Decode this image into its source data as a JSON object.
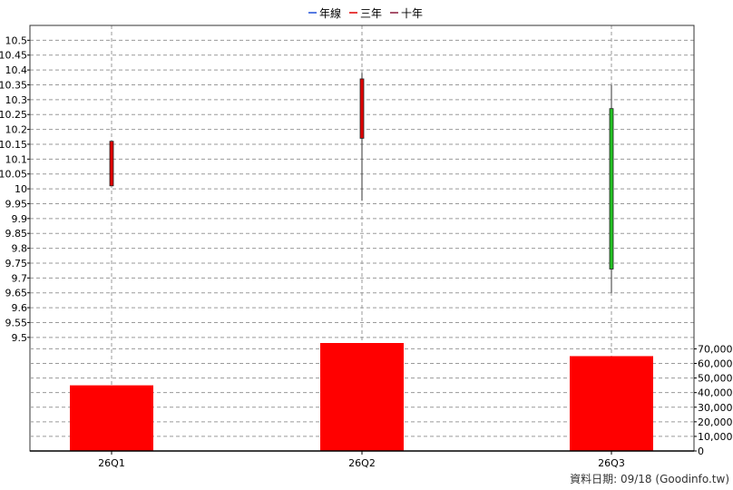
{
  "chart_data": [
    {
      "type": "candlestick",
      "categories": [
        "26Q1",
        "26Q2",
        "26Q3"
      ],
      "candles": [
        {
          "open": 10.01,
          "high": 10.16,
          "low": 10.01,
          "close": 10.16,
          "color": "#e00000"
        },
        {
          "open": 10.17,
          "high": 10.39,
          "low": 9.96,
          "close": 10.37,
          "color": "#e00000"
        },
        {
          "open": 10.27,
          "high": 10.35,
          "low": 9.65,
          "close": 9.73,
          "color": "#22c022"
        }
      ],
      "ylim": [
        9.475,
        10.55
      ],
      "y_ticks": [
        "10.5",
        "10.45",
        "10.4",
        "10.35",
        "10.3",
        "10.25",
        "10.2",
        "10.15",
        "10.1",
        "10.05",
        "10",
        "9.95",
        "9.9",
        "9.85",
        "9.8",
        "9.75",
        "9.7",
        "9.65",
        "9.6",
        "9.55",
        "9.5"
      ],
      "legend": [
        {
          "label": "年線",
          "color": "#1e4fd8"
        },
        {
          "label": "三年",
          "color": "#e00000"
        },
        {
          "label": "十年",
          "color": "#8b1a3a"
        }
      ],
      "legend_position": "top-center",
      "grid": true
    },
    {
      "type": "bar",
      "categories": [
        "26Q1",
        "26Q2",
        "26Q3"
      ],
      "values": [
        45000,
        74000,
        65000
      ],
      "color": "#ff0000",
      "ylim": [
        0,
        74000
      ],
      "y_ticks": [
        "70,000",
        "60,000",
        "50,000",
        "40,000",
        "30,000",
        "20,000",
        "10,000",
        "0"
      ],
      "axis_side": "right",
      "grid": true
    }
  ],
  "footer": {
    "label": "資料日期: 09/18",
    "source": "(Goodinfo.tw)"
  }
}
